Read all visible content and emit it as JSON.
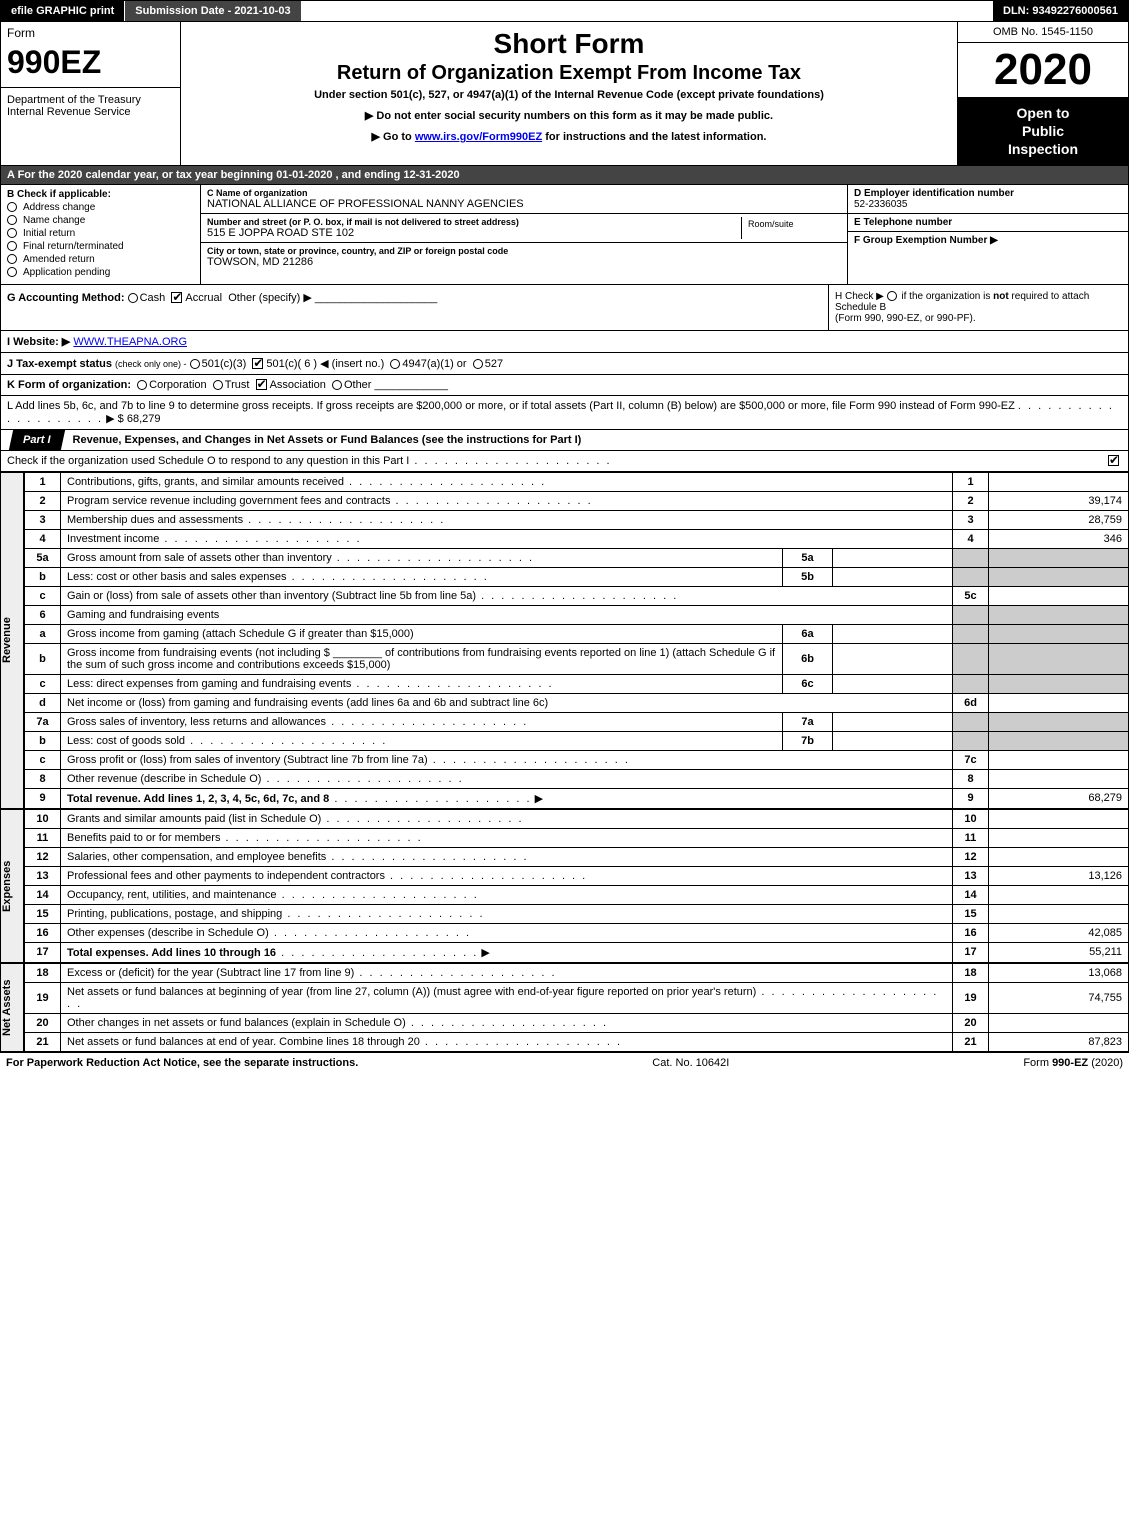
{
  "topbar": {
    "efile": "efile GRAPHIC print",
    "submission": "Submission Date - 2021-10-03",
    "dln": "DLN: 93492276000561"
  },
  "header": {
    "form_word": "Form",
    "form_number": "990EZ",
    "dept1": "Department of the Treasury",
    "dept2": "Internal Revenue Service",
    "short_form": "Short Form",
    "title": "Return of Organization Exempt From Income Tax",
    "subtitle": "Under section 501(c), 527, or 4947(a)(1) of the Internal Revenue Code (except private foundations)",
    "warn": "▶ Do not enter social security numbers on this form as it may be made public.",
    "goto_pre": "▶ Go to ",
    "goto_link": "www.irs.gov/Form990EZ",
    "goto_post": " for instructions and the latest information.",
    "omb": "OMB No. 1545-1150",
    "year": "2020",
    "inspect1": "Open to",
    "inspect2": "Public",
    "inspect3": "Inspection"
  },
  "row_a": "A For the 2020 calendar year, or tax year beginning 01-01-2020 , and ending 12-31-2020",
  "box_b": {
    "heading": "B  Check if applicable:",
    "items": [
      "Address change",
      "Name change",
      "Initial return",
      "Final return/terminated",
      "Amended return",
      "Application pending"
    ]
  },
  "box_c": {
    "name_lbl": "C Name of organization",
    "name": "NATIONAL ALLIANCE OF PROFESSIONAL NANNY AGENCIES",
    "addr_lbl": "Number and street (or P. O. box, if mail is not delivered to street address)",
    "addr": "515 E JOPPA ROAD STE 102",
    "room_lbl": "Room/suite",
    "city_lbl": "City or town, state or province, country, and ZIP or foreign postal code",
    "city": "TOWSON, MD  21286"
  },
  "box_d": {
    "lbl": "D Employer identification number",
    "val": "52-2336035"
  },
  "box_e": {
    "lbl": "E Telephone number",
    "val": ""
  },
  "box_f": {
    "lbl": "F Group Exemption Number  ▶",
    "val": ""
  },
  "row_g": {
    "label": "G Accounting Method:",
    "cash": "Cash",
    "accrual": "Accrual",
    "other": "Other (specify) ▶"
  },
  "row_h": {
    "text1": "H  Check ▶",
    "text2": "if the organization is ",
    "not": "not",
    "text3": " required to attach Schedule B",
    "text4": "(Form 990, 990-EZ, or 990-PF)."
  },
  "row_i": {
    "label": "I Website: ▶",
    "val": "WWW.THEAPNA.ORG"
  },
  "row_j": {
    "label": "J Tax-exempt status",
    "note": "(check only one) -",
    "opt1": "501(c)(3)",
    "opt2": "501(c)( 6 ) ◀ (insert no.)",
    "opt3": "4947(a)(1) or",
    "opt4": "527"
  },
  "row_k": {
    "label": "K Form of organization:",
    "opts": [
      "Corporation",
      "Trust",
      "Association",
      "Other"
    ]
  },
  "row_l": {
    "text": "L Add lines 5b, 6c, and 7b to line 9 to determine gross receipts. If gross receipts are $200,000 or more, or if total assets (Part II, column (B) below) are $500,000 or more, file Form 990 instead of Form 990-EZ",
    "amount_label": "▶ $",
    "amount": "68,279"
  },
  "part1": {
    "tab": "Part I",
    "title": "Revenue, Expenses, and Changes in Net Assets or Fund Balances (see the instructions for Part I)",
    "check_line": "Check if the organization used Schedule O to respond to any question in this Part I"
  },
  "sections": {
    "revenue": "Revenue",
    "expenses": "Expenses",
    "netassets": "Net Assets"
  },
  "lines": {
    "l1": {
      "n": "1",
      "d": "Contributions, gifts, grants, and similar amounts received",
      "a": ""
    },
    "l2": {
      "n": "2",
      "d": "Program service revenue including government fees and contracts",
      "a": "39,174"
    },
    "l3": {
      "n": "3",
      "d": "Membership dues and assessments",
      "a": "28,759"
    },
    "l4": {
      "n": "4",
      "d": "Investment income",
      "a": "346"
    },
    "l5a": {
      "n": "5a",
      "d": "Gross amount from sale of assets other than inventory",
      "sub": "5a"
    },
    "l5b": {
      "n": "b",
      "d": "Less: cost or other basis and sales expenses",
      "sub": "5b"
    },
    "l5c": {
      "n": "c",
      "d": "Gain or (loss) from sale of assets other than inventory (Subtract line 5b from line 5a)",
      "rn": "5c",
      "a": ""
    },
    "l6": {
      "n": "6",
      "d": "Gaming and fundraising events"
    },
    "l6a": {
      "n": "a",
      "d": "Gross income from gaming (attach Schedule G if greater than $15,000)",
      "sub": "6a"
    },
    "l6b": {
      "n": "b",
      "d1": "Gross income from fundraising events (not including $",
      "d2": "of contributions from fundraising events reported on line 1) (attach Schedule G if the sum of such gross income and contributions exceeds $15,000)",
      "sub": "6b"
    },
    "l6c": {
      "n": "c",
      "d": "Less: direct expenses from gaming and fundraising events",
      "sub": "6c"
    },
    "l6d": {
      "n": "d",
      "d": "Net income or (loss) from gaming and fundraising events (add lines 6a and 6b and subtract line 6c)",
      "rn": "6d",
      "a": ""
    },
    "l7a": {
      "n": "7a",
      "d": "Gross sales of inventory, less returns and allowances",
      "sub": "7a"
    },
    "l7b": {
      "n": "b",
      "d": "Less: cost of goods sold",
      "sub": "7b"
    },
    "l7c": {
      "n": "c",
      "d": "Gross profit or (loss) from sales of inventory (Subtract line 7b from line 7a)",
      "rn": "7c",
      "a": ""
    },
    "l8": {
      "n": "8",
      "d": "Other revenue (describe in Schedule O)",
      "a": ""
    },
    "l9": {
      "n": "9",
      "d": "Total revenue. Add lines 1, 2, 3, 4, 5c, 6d, 7c, and 8",
      "a": "68,279",
      "bold": true
    },
    "l10": {
      "n": "10",
      "d": "Grants and similar amounts paid (list in Schedule O)",
      "a": ""
    },
    "l11": {
      "n": "11",
      "d": "Benefits paid to or for members",
      "a": ""
    },
    "l12": {
      "n": "12",
      "d": "Salaries, other compensation, and employee benefits",
      "a": ""
    },
    "l13": {
      "n": "13",
      "d": "Professional fees and other payments to independent contractors",
      "a": "13,126"
    },
    "l14": {
      "n": "14",
      "d": "Occupancy, rent, utilities, and maintenance",
      "a": ""
    },
    "l15": {
      "n": "15",
      "d": "Printing, publications, postage, and shipping",
      "a": ""
    },
    "l16": {
      "n": "16",
      "d": "Other expenses (describe in Schedule O)",
      "a": "42,085"
    },
    "l17": {
      "n": "17",
      "d": "Total expenses. Add lines 10 through 16",
      "a": "55,211",
      "bold": true
    },
    "l18": {
      "n": "18",
      "d": "Excess or (deficit) for the year (Subtract line 17 from line 9)",
      "a": "13,068"
    },
    "l19": {
      "n": "19",
      "d": "Net assets or fund balances at beginning of year (from line 27, column (A)) (must agree with end-of-year figure reported on prior year's return)",
      "a": "74,755"
    },
    "l20": {
      "n": "20",
      "d": "Other changes in net assets or fund balances (explain in Schedule O)",
      "a": ""
    },
    "l21": {
      "n": "21",
      "d": "Net assets or fund balances at end of year. Combine lines 18 through 20",
      "a": "87,823"
    }
  },
  "footer": {
    "left": "For Paperwork Reduction Act Notice, see the separate instructions.",
    "mid": "Cat. No. 10642I",
    "right_pre": "Form ",
    "right_bold": "990-EZ",
    "right_post": " (2020)"
  },
  "colors": {
    "black": "#000000",
    "darkgrey": "#444444",
    "lightgrey": "#cccccc",
    "link": "#0000ee"
  }
}
